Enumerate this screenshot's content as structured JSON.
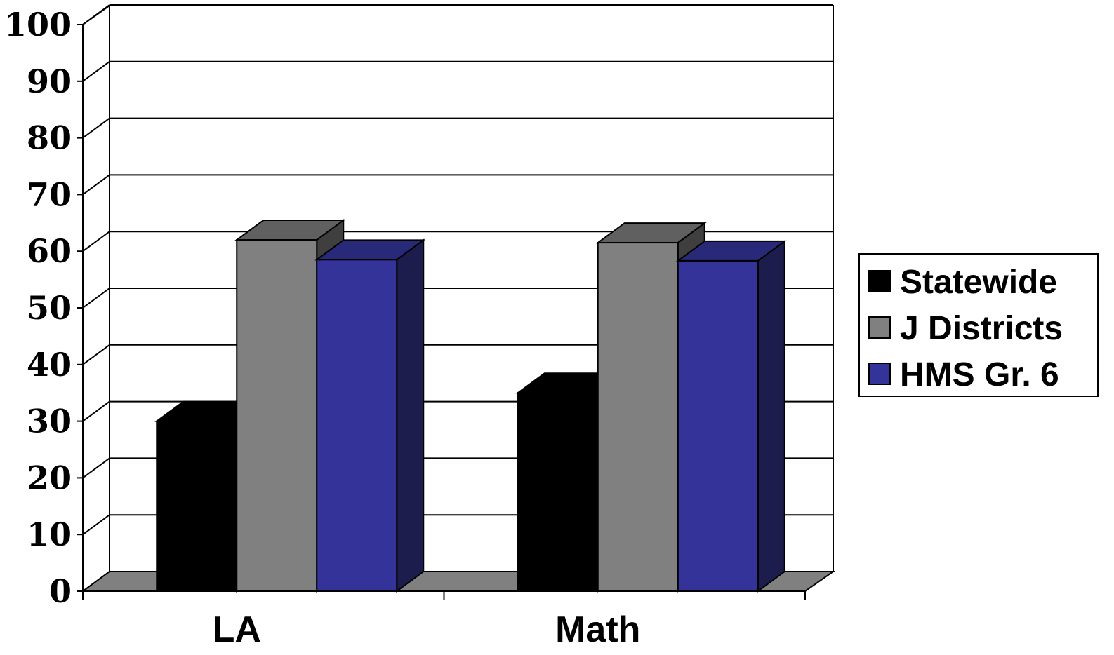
{
  "chart_data": {
    "type": "bar",
    "style": "3d-clustered",
    "categories": [
      "LA",
      "Math"
    ],
    "series": [
      {
        "name": "Statewide",
        "values": [
          30,
          35
        ],
        "color": "#000000",
        "side_color": "#000000",
        "top_color": "#000000"
      },
      {
        "name": "J Districts",
        "values": [
          62,
          61.5
        ],
        "color": "#808080",
        "side_color": "#3f3f3f",
        "top_color": "#606060"
      },
      {
        "name": "HMS Gr. 6",
        "values": [
          58.5,
          58.3
        ],
        "color": "#333399",
        "side_color": "#1c1c4d",
        "top_color": "#29297a"
      }
    ],
    "y_ticks": [
      "0",
      "10",
      "20",
      "30",
      "40",
      "50",
      "60",
      "70",
      "80",
      "90",
      "100"
    ],
    "ylim": [
      0,
      100
    ],
    "y_major_step": 10,
    "grid": true,
    "legend_position": "right",
    "title": "",
    "xlabel": "",
    "ylabel": "",
    "floor_color": "#808080"
  }
}
